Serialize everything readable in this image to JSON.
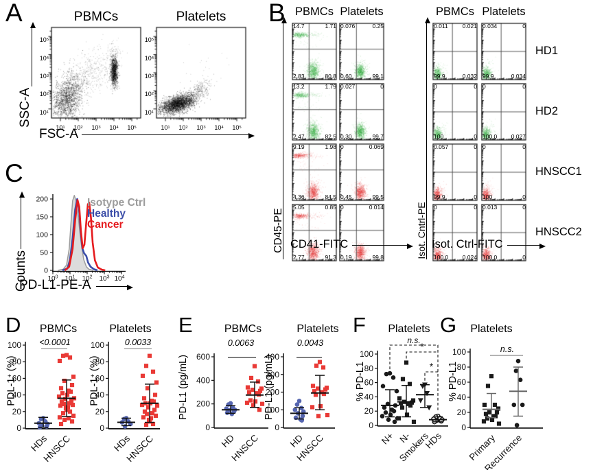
{
  "chart_data": [
    {
      "panel": "A",
      "type": "scatter",
      "subtype": "flow-cytometry-density-plot",
      "xlabel": "FSC-A",
      "ylabel": "SSC-A",
      "x_scale": "log",
      "y_scale": "log",
      "decade_ticks": [
        "10^1",
        "10^2",
        "10^3",
        "10^4",
        "10^5"
      ],
      "plots": [
        {
          "title": "PBMCs",
          "clusters": [
            {
              "cx": 0.17,
              "cy": 0.22,
              "sx": 0.085,
              "sy": 0.13,
              "n": 1400,
              "diag": 0.3
            },
            {
              "cx": 0.42,
              "cy": 0.48,
              "sx": 0.15,
              "sy": 0.13,
              "n": 500,
              "diag": 0.6,
              "a": 0.5
            },
            {
              "cx": 0.7,
              "cy": 0.52,
              "sx": 0.02,
              "sy": 0.08,
              "n": 1000
            },
            {
              "cx": 0.68,
              "cy": 0.72,
              "sx": 0.04,
              "sy": 0.06,
              "n": 60,
              "a": 0.5
            }
          ]
        },
        {
          "title": "Platelets",
          "clusters": [
            {
              "cx": 0.24,
              "cy": 0.16,
              "sx": 0.095,
              "sy": 0.045,
              "n": 2400,
              "diag": 0.55
            },
            {
              "cx": 0.47,
              "cy": 0.3,
              "sx": 0.07,
              "sy": 0.05,
              "n": 250,
              "diag": 0.5,
              "a": 0.7
            },
            {
              "cx": 0.55,
              "cy": 0.6,
              "sx": 0.18,
              "sy": 0.15,
              "n": 20,
              "a": 0.5
            }
          ]
        }
      ]
    },
    {
      "panel": "B",
      "type": "scatter",
      "subtype": "flow-cytometry-quadrant-grid",
      "col_headers": [
        "PBMCs",
        "Platelets",
        "PBMCs",
        "Platelets"
      ],
      "group_axes": [
        {
          "xlabel": "CD41-FITC",
          "ylabel": "CD45-PE"
        },
        {
          "xlabel": "Isot. Ctrl-FITC",
          "ylabel": "Isot. Cntrl-PE"
        }
      ],
      "quadrant_order": [
        "upper-left",
        "upper-right",
        "lower-left",
        "lower-right"
      ],
      "rows": [
        {
          "label": "HD1",
          "color": "#3caf46",
          "quads": [
            {
              "pattern": "pbmc",
              "q": [
                "14.7",
                "1.71",
                "2.83",
                "80.8"
              ]
            },
            {
              "pattern": "plt",
              "q": [
                "0.076",
                "0.25",
                "0.60",
                "99.1"
              ]
            },
            {
              "pattern": "iso",
              "q": [
                "0.011",
                "0.021",
                "99.9",
                "0.032"
              ]
            },
            {
              "pattern": "iso",
              "q": [
                "0.034",
                "0",
                "99.9",
                "0.034"
              ]
            }
          ]
        },
        {
          "label": "HD2",
          "color": "#3caf46",
          "quads": [
            {
              "pattern": "pbmc",
              "q": [
                "13.2",
                "1.79",
                "2.47",
                "82.5"
              ]
            },
            {
              "pattern": "plt",
              "q": [
                "0.027",
                "0",
                "0.30",
                "99.7"
              ]
            },
            {
              "pattern": "iso",
              "q": [
                "0",
                "0",
                "100",
                "0"
              ]
            },
            {
              "pattern": "iso",
              "q": [
                "0",
                "0",
                "100.0",
                "0.027"
              ]
            }
          ]
        },
        {
          "label": "HNSCC1",
          "color": "#e23b3b",
          "quads": [
            {
              "pattern": "pbmc",
              "q": [
                "9.19",
                "1.98",
                "4.36",
                "84.5"
              ]
            },
            {
              "pattern": "plt",
              "q": [
                "0",
                "0.069",
                "0.45",
                "99.5"
              ]
            },
            {
              "pattern": "iso",
              "q": [
                "0.057",
                "0",
                "99.9",
                "0"
              ]
            },
            {
              "pattern": "iso",
              "q": [
                "0",
                "0",
                "100",
                "0"
              ]
            }
          ]
        },
        {
          "label": "HNSCC2",
          "color": "#e23b3b",
          "quads": [
            {
              "pattern": "pbmc",
              "q": [
                "5.05",
                "0.85",
                "2.77",
                "91.3"
              ]
            },
            {
              "pattern": "plt",
              "q": [
                "0",
                "0.014",
                "0.19",
                "99.8"
              ]
            },
            {
              "pattern": "iso",
              "q": [
                "0",
                "0",
                "100.0",
                "0.024"
              ]
            },
            {
              "pattern": "iso",
              "q": [
                "0.013",
                "0",
                "100.0",
                "0"
              ]
            }
          ]
        }
      ]
    },
    {
      "panel": "C",
      "type": "line",
      "subtype": "flow-histogram-overlay",
      "xlabel": "PD-L1-PE-A",
      "ylabel": "Counts",
      "yticks": [
        0,
        50,
        100,
        150,
        200
      ],
      "xticks": [
        "10^0",
        "10^1",
        "10^2",
        "10^3",
        "10^4"
      ],
      "series": [
        {
          "name": "Isotype Ctrl",
          "color": "#9c9c9c",
          "fill": "#dcdcdc",
          "points": [
            [
              0.3,
              0
            ],
            [
              0.6,
              3
            ],
            [
              0.8,
              15
            ],
            [
              0.95,
              60
            ],
            [
              1.05,
              130
            ],
            [
              1.15,
              195
            ],
            [
              1.25,
              210
            ],
            [
              1.35,
              195
            ],
            [
              1.5,
              140
            ],
            [
              1.65,
              75
            ],
            [
              1.8,
              30
            ],
            [
              1.95,
              10
            ],
            [
              2.1,
              3
            ],
            [
              2.35,
              0
            ]
          ]
        },
        {
          "name": "Healthy",
          "color": "#3b4da8",
          "points": [
            [
              0.55,
              0
            ],
            [
              0.85,
              5
            ],
            [
              1.0,
              30
            ],
            [
              1.15,
              90
            ],
            [
              1.3,
              170
            ],
            [
              1.42,
              200
            ],
            [
              1.52,
              175
            ],
            [
              1.62,
              110
            ],
            [
              1.72,
              62
            ],
            [
              1.82,
              48
            ],
            [
              1.95,
              40
            ],
            [
              2.05,
              22
            ],
            [
              2.2,
              10
            ],
            [
              2.4,
              3
            ],
            [
              2.6,
              0
            ]
          ]
        },
        {
          "name": "Cancer",
          "color": "#e51b1e",
          "points": [
            [
              0.7,
              0
            ],
            [
              0.95,
              10
            ],
            [
              1.15,
              60
            ],
            [
              1.3,
              140
            ],
            [
              1.44,
              197
            ],
            [
              1.54,
              178
            ],
            [
              1.64,
              108
            ],
            [
              1.74,
              62
            ],
            [
              1.84,
              72
            ],
            [
              1.94,
              130
            ],
            [
              2.04,
              185
            ],
            [
              2.12,
              190
            ],
            [
              2.22,
              148
            ],
            [
              2.32,
              78
            ],
            [
              2.45,
              28
            ],
            [
              2.62,
              8
            ],
            [
              2.85,
              2
            ],
            [
              3.05,
              0
            ]
          ]
        }
      ]
    },
    {
      "panel": "D",
      "id": "D1",
      "type": "scatter",
      "subtype": "dot-plot",
      "title": "PBMCs",
      "p_value": "<0.0001",
      "ylabel": "PDL-1+ (%)",
      "ylabel_parts": {
        "pre": "PDL-1",
        "sup": "+",
        "post": " (%)"
      },
      "ylim": [
        0,
        100
      ],
      "yticks": [
        0,
        20,
        40,
        60,
        80,
        100
      ],
      "groups": [
        {
          "label": "HDs",
          "marker": "circle",
          "color": "#5565af",
          "values": [
            12,
            11,
            8,
            6,
            5,
            3,
            2,
            1
          ],
          "mean": 6,
          "sd_range": [
            1,
            13
          ]
        },
        {
          "label": "HNSCC",
          "marker": "square",
          "color": "#e93a36",
          "values": [
            88,
            87,
            85,
            81,
            62,
            57,
            52,
            48,
            45,
            44,
            42,
            40,
            38,
            36,
            35,
            33,
            32,
            30,
            29,
            28,
            27,
            25,
            24,
            22,
            20,
            18,
            15,
            13,
            12,
            10,
            8,
            5
          ],
          "mean": 36,
          "sd_range": [
            14,
            58
          ]
        }
      ]
    },
    {
      "panel": "D",
      "id": "D2",
      "type": "scatter",
      "subtype": "dot-plot",
      "title": "Platelets",
      "p_value": "0.0033",
      "ylabel": "PDL-1+ (%)",
      "ylabel_parts": {
        "pre": "PDL-1",
        "sup": "+",
        "post": " (%)"
      },
      "ylim": [
        0,
        100
      ],
      "yticks": [
        0,
        20,
        40,
        60,
        80,
        100
      ],
      "groups": [
        {
          "label": "HDs",
          "marker": "circle",
          "color": "#5565af",
          "values": [
            12,
            11,
            8,
            7,
            5,
            2
          ],
          "mean": 7,
          "sd_range": [
            3,
            12
          ]
        },
        {
          "label": "HNSCC",
          "marker": "square",
          "color": "#e93a36",
          "values": [
            87,
            75,
            68,
            63,
            55,
            48,
            40,
            36,
            33,
            32,
            30,
            30,
            28,
            27,
            25,
            22,
            20,
            18,
            17,
            15,
            13,
            12,
            10,
            8,
            5,
            4
          ],
          "mean": 30,
          "sd_range": [
            7,
            53
          ]
        }
      ]
    },
    {
      "panel": "E",
      "id": "E1",
      "type": "scatter",
      "subtype": "dot-plot",
      "title": "PBMCs",
      "p_value": "0.0063",
      "ylabel": "PD-L1 (pg/mL)",
      "ylim": [
        0,
        600
      ],
      "yticks": [
        0,
        200,
        400,
        600
      ],
      "groups": [
        {
          "label": "HD",
          "marker": "circle",
          "color": "#5565af",
          "values": [
            205,
            195,
            170,
            160,
            150,
            145,
            135,
            125,
            115
          ],
          "mean": 150,
          "sd_range": [
            120,
            185
          ]
        },
        {
          "label": "HNSCC",
          "marker": "square",
          "color": "#e93a36",
          "values": [
            520,
            420,
            390,
            340,
            330,
            320,
            310,
            300,
            290,
            280,
            230,
            220,
            210,
            200,
            190,
            150
          ],
          "mean": 275,
          "sd_range": [
            170,
            385
          ]
        }
      ]
    },
    {
      "panel": "E",
      "id": "E2",
      "type": "scatter",
      "subtype": "dot-plot",
      "title": "Platelets",
      "p_value": "0.0043",
      "ylabel": "PD-L1 (pg/mL)",
      "ylim": [
        0,
        400
      ],
      "yticks": [
        0,
        100,
        200,
        300,
        400
      ],
      "groups": [
        {
          "label": "HD",
          "marker": "circle",
          "color": "#5565af",
          "values": [
            150,
            130,
            110,
            100,
            90,
            80,
            65,
            55,
            45,
            40
          ],
          "mean": 80,
          "sd_range": [
            48,
            112
          ]
        },
        {
          "label": "HNSCC",
          "marker": "square",
          "color": "#e93a36",
          "values": [
            370,
            350,
            340,
            235,
            225,
            220,
            215,
            205,
            200,
            190,
            185,
            120,
            115,
            70,
            65
          ],
          "mean": 195,
          "sd_range": [
            100,
            295
          ]
        }
      ]
    },
    {
      "panel": "F",
      "id": "F",
      "type": "scatter",
      "subtype": "dot-plot",
      "title": "Platelets",
      "ylabel": "% PD-L1",
      "ylim": [
        0,
        100
      ],
      "yticks": [
        0,
        20,
        40,
        60,
        80,
        100
      ],
      "groups": [
        {
          "label": "N+",
          "marker": "circle",
          "color": "#1a1a1a",
          "values": [
            73,
            72,
            67,
            55,
            48,
            30,
            28,
            25,
            22,
            20,
            18,
            15,
            13,
            10,
            8,
            5
          ],
          "mean": 28,
          "sd_range": [
            12,
            50
          ]
        },
        {
          "label": "N-",
          "marker": "square",
          "color": "#1a1a1a",
          "values": [
            88,
            65,
            58,
            38,
            35,
            33,
            32,
            31,
            30,
            28,
            25,
            15,
            10,
            5
          ],
          "mean": 33,
          "sd_range": [
            12,
            56
          ]
        },
        {
          "label": "Smokers",
          "marker": "triangle-down",
          "color": "#1a1a1a",
          "values": [
            57,
            55,
            45,
            35,
            25
          ],
          "mean": 43,
          "sd_range": [
            25,
            57
          ]
        },
        {
          "label": "HDs",
          "marker": "open-circle",
          "color": "#1a1a1a",
          "values": [
            13,
            12,
            10,
            9,
            8,
            7,
            6,
            5
          ],
          "mean": 8,
          "sd_range": [
            5,
            12
          ]
        }
      ],
      "comparisons": [
        {
          "from": "N+",
          "to": "HDs",
          "label": "n.s."
        },
        {
          "from": "N-",
          "to": "HDs",
          "label": "*"
        },
        {
          "from": "Smokers",
          "to": "HDs",
          "label": "*"
        }
      ]
    },
    {
      "panel": "G",
      "id": "G",
      "type": "scatter",
      "subtype": "dot-plot",
      "title": "Platelets",
      "sig_label": "n.s.",
      "ylabel": "% PD-L1",
      "ylim": [
        0,
        100
      ],
      "yticks": [
        0,
        20,
        40,
        60,
        80,
        100
      ],
      "groups": [
        {
          "label": "Primary",
          "marker": "square",
          "color": "#1a1a1a",
          "values": [
            68,
            55,
            30,
            30,
            25,
            20,
            20,
            18,
            15,
            15,
            12,
            10,
            8,
            5
          ],
          "mean": 24,
          "sd_range": [
            13,
            45
          ]
        },
        {
          "label": "Recurrence",
          "marker": "circle",
          "color": "#1a1a1a",
          "values": [
            88,
            75,
            63,
            30,
            30,
            3
          ],
          "mean": 48,
          "sd_range": [
            15,
            80
          ]
        }
      ]
    }
  ]
}
